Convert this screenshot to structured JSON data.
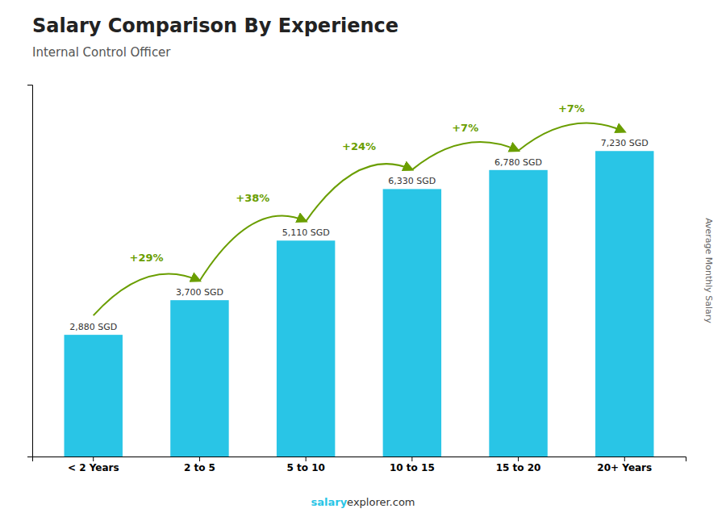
{
  "chart_data": {
    "type": "bar",
    "title": "Salary Comparison By Experience",
    "subtitle": "Internal Control Officer",
    "categories": [
      "< 2 Years",
      "2 to 5",
      "5 to 10",
      "10 to 15",
      "15 to 20",
      "20+ Years"
    ],
    "values": [
      2880,
      3700,
      5110,
      6330,
      6780,
      7230
    ],
    "value_labels": [
      "2,880 SGD",
      "3,700 SGD",
      "5,110 SGD",
      "6,330 SGD",
      "6,780 SGD",
      "7,230 SGD"
    ],
    "data_labels": true,
    "annotations": [
      "+29%",
      "+38%",
      "+24%",
      "+7%",
      "+7%"
    ],
    "ylabel": "Average Monthly Salary",
    "footer": [
      "salary",
      "explorer.com"
    ],
    "color": "#29c5e6",
    "ylim": [
      0,
      8800
    ],
    "tick_labels": "x",
    "grid": false
  }
}
